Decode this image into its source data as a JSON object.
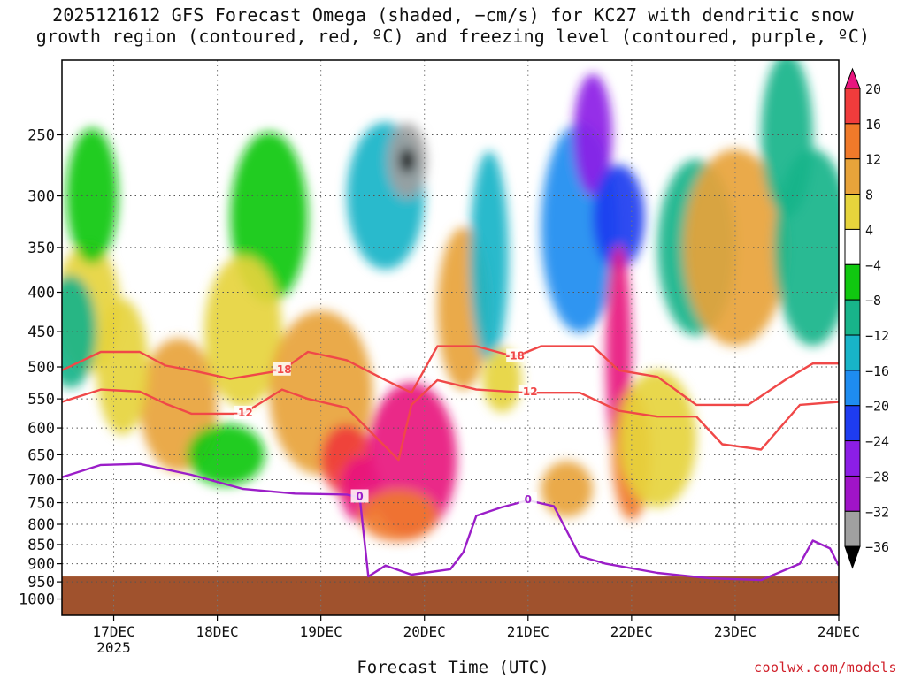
{
  "title_line1": "2025121612 GFS Forecast Omega (shaded, −cm/s) for KC27 with dendritic snow",
  "title_line2": "growth region (contoured, red, ºC) and freezing level (contoured, purple, ºC)",
  "xlabel": "Forecast Time (UTC)",
  "credit": "coolwx.com/models",
  "chart_data": {
    "type": "heatmap",
    "x_axis": {
      "label": "Forecast Time (UTC)",
      "range": [
        "2025-12-16T12:00Z",
        "2025-12-24T00:00Z"
      ],
      "ticks": [
        "17DEC",
        "18DEC",
        "19DEC",
        "20DEC",
        "21DEC",
        "22DEC",
        "23DEC",
        "24DEC"
      ],
      "year_label": "2025"
    },
    "y_axis": {
      "scale": "log-pressure",
      "inverted": true,
      "range_hpa": [
        1050,
        200
      ],
      "ticks": [
        250,
        300,
        350,
        400,
        450,
        500,
        550,
        600,
        650,
        700,
        750,
        800,
        850,
        900,
        950,
        1000
      ]
    },
    "colorbar": {
      "levels": [
        20,
        16,
        12,
        8,
        4,
        -4,
        -8,
        -12,
        -16,
        -20,
        -24,
        -28,
        -32,
        -36
      ],
      "bins": [
        {
          "range": "> 20",
          "color": "#e8157e"
        },
        {
          "range": "16 to 20",
          "color": "#f03c3c"
        },
        {
          "range": "12 to 16",
          "color": "#f07a2a"
        },
        {
          "range": "8 to 12",
          "color": "#e8a33a"
        },
        {
          "range": "4 to 8",
          "color": "#e6d43c"
        },
        {
          "range": "-4 to 4",
          "color": "#ffffff"
        },
        {
          "range": "-8 to -4",
          "color": "#10c810"
        },
        {
          "range": "-12 to -8",
          "color": "#18b48a"
        },
        {
          "range": "-16 to -12",
          "color": "#18b4c8"
        },
        {
          "range": "-20 to -16",
          "color": "#1e8cf0"
        },
        {
          "range": "-24 to -20",
          "color": "#1e3cf0"
        },
        {
          "range": "-28 to -24",
          "color": "#8c1ee6"
        },
        {
          "range": "-32 to -28",
          "color": "#a014c8"
        },
        {
          "range": "-36 to -32",
          "color": "#a0a0a0"
        },
        {
          "range": "< -36",
          "color": "#000000"
        }
      ]
    },
    "blobs": [
      {
        "t": "2025-12-16T18:00Z",
        "p": 420,
        "dt": 2.5,
        "dp": 160,
        "v": 5
      },
      {
        "t": "2025-12-16T19:00Z",
        "p": 300,
        "dt": 2,
        "dp": 120,
        "v": -6
      },
      {
        "t": "2025-12-16T14:00Z",
        "p": 450,
        "dt": 2,
        "dp": 150,
        "v": -10
      },
      {
        "t": "2025-12-17T15:00Z",
        "p": 560,
        "dt": 3,
        "dp": 220,
        "v": 11
      },
      {
        "t": "2025-12-17T02:00Z",
        "p": 500,
        "dt": 2,
        "dp": 200,
        "v": 6
      },
      {
        "t": "2025-12-18T02:00Z",
        "p": 650,
        "dt": 3,
        "dp": 120,
        "v": -7
      },
      {
        "t": "2025-12-18T12:00Z",
        "p": 320,
        "dt": 3,
        "dp": 160,
        "v": -6
      },
      {
        "t": "2025-12-18T06:00Z",
        "p": 450,
        "dt": 3,
        "dp": 200,
        "v": 6
      },
      {
        "t": "2025-12-19T00:00Z",
        "p": 540,
        "dt": 4,
        "dp": 260,
        "v": 10
      },
      {
        "t": "2025-12-19T06:00Z",
        "p": 660,
        "dt": 2,
        "dp": 140,
        "v": 18
      },
      {
        "t": "2025-12-19T09:00Z",
        "p": 720,
        "dt": 1.5,
        "dp": 140,
        "v": 21
      },
      {
        "t": "2025-12-19T15:00Z",
        "p": 300,
        "dt": 3,
        "dp": 130,
        "v": -12
      },
      {
        "t": "2025-12-19T20:00Z",
        "p": 270,
        "dt": 1.5,
        "dp": 60,
        "v": -32
      },
      {
        "t": "2025-12-19T20:00Z",
        "p": 270,
        "dt": 0.6,
        "dp": 20,
        "v": -40
      },
      {
        "t": "2025-12-19T21:00Z",
        "p": 660,
        "dt": 3.5,
        "dp": 300,
        "v": 22
      },
      {
        "t": "2025-12-19T18:00Z",
        "p": 780,
        "dt": 3,
        "dp": 120,
        "v": 14
      },
      {
        "t": "2025-12-20T09:00Z",
        "p": 420,
        "dt": 2,
        "dp": 200,
        "v": 9
      },
      {
        "t": "2025-12-20T15:00Z",
        "p": 360,
        "dt": 1.5,
        "dp": 220,
        "v": -12
      },
      {
        "t": "2025-12-20T18:00Z",
        "p": 520,
        "dt": 1.5,
        "dp": 100,
        "v": 6
      },
      {
        "t": "2025-12-21T12:00Z",
        "p": 330,
        "dt": 3,
        "dp": 200,
        "v": -16
      },
      {
        "t": "2025-12-21T15:00Z",
        "p": 250,
        "dt": 1.5,
        "dp": 90,
        "v": -27
      },
      {
        "t": "2025-12-21T21:00Z",
        "p": 320,
        "dt": 2,
        "dp": 100,
        "v": -20
      },
      {
        "t": "2025-12-21T09:00Z",
        "p": 720,
        "dt": 2,
        "dp": 120,
        "v": 12
      },
      {
        "t": "2025-12-21T21:00Z",
        "p": 480,
        "dt": 1,
        "dp": 300,
        "v": 22
      },
      {
        "t": "2025-12-22T00:00Z",
        "p": 650,
        "dt": 1.5,
        "dp": 250,
        "v": 13
      },
      {
        "t": "2025-12-22T06:00Z",
        "p": 620,
        "dt": 3,
        "dp": 250,
        "v": 5
      },
      {
        "t": "2025-12-22T15:00Z",
        "p": 350,
        "dt": 3,
        "dp": 180,
        "v": -9
      },
      {
        "t": "2025-12-23T00:00Z",
        "p": 350,
        "dt": 4,
        "dp": 200,
        "v": 9
      },
      {
        "t": "2025-12-23T18:00Z",
        "p": 350,
        "dt": 3,
        "dp": 200,
        "v": -10
      },
      {
        "t": "2025-12-23T12:00Z",
        "p": 250,
        "dt": 2,
        "dp": 120,
        "v": -8
      }
    ],
    "contours": [
      {
        "label": "-18",
        "color": "#f04848",
        "points": [
          [
            "2025-12-16T12:00Z",
            505
          ],
          [
            "2025-12-16T21:00Z",
            478
          ],
          [
            "2025-12-17T06:00Z",
            478
          ],
          [
            "2025-12-17T12:00Z",
            498
          ],
          [
            "2025-12-17T18:00Z",
            505
          ],
          [
            "2025-12-18T03:00Z",
            518
          ],
          [
            "2025-12-18T15:00Z",
            505
          ],
          [
            "2025-12-18T21:00Z",
            478
          ],
          [
            "2025-12-19T06:00Z",
            490
          ],
          [
            "2025-12-19T15:00Z",
            520
          ],
          [
            "2025-12-19T21:00Z",
            540
          ],
          [
            "2025-12-20T03:00Z",
            470
          ],
          [
            "2025-12-20T12:00Z",
            470
          ],
          [
            "2025-12-20T21:00Z",
            485
          ],
          [
            "2025-12-21T03:00Z",
            470
          ],
          [
            "2025-12-21T15:00Z",
            470
          ],
          [
            "2025-12-21T21:00Z",
            505
          ],
          [
            "2025-12-22T06:00Z",
            515
          ],
          [
            "2025-12-22T15:00Z",
            560
          ],
          [
            "2025-12-23T03:00Z",
            560
          ],
          [
            "2025-12-23T12:00Z",
            518
          ],
          [
            "2025-12-23T18:00Z",
            495
          ],
          [
            "2025-12-24T00:00Z",
            495
          ]
        ]
      },
      {
        "label": "-12",
        "color": "#f04848",
        "points": [
          [
            "2025-12-16T12:00Z",
            555
          ],
          [
            "2025-12-16T21:00Z",
            535
          ],
          [
            "2025-12-17T06:00Z",
            538
          ],
          [
            "2025-12-17T12:00Z",
            558
          ],
          [
            "2025-12-17T18:00Z",
            575
          ],
          [
            "2025-12-18T06:00Z",
            575
          ],
          [
            "2025-12-18T15:00Z",
            535
          ],
          [
            "2025-12-18T21:00Z",
            550
          ],
          [
            "2025-12-19T06:00Z",
            565
          ],
          [
            "2025-12-19T18:00Z",
            660
          ],
          [
            "2025-12-19T21:00Z",
            560
          ],
          [
            "2025-12-20T03:00Z",
            520
          ],
          [
            "2025-12-20T12:00Z",
            535
          ],
          [
            "2025-12-21T00:00Z",
            540
          ],
          [
            "2025-12-21T12:00Z",
            540
          ],
          [
            "2025-12-21T21:00Z",
            570
          ],
          [
            "2025-12-22T06:00Z",
            580
          ],
          [
            "2025-12-22T15:00Z",
            580
          ],
          [
            "2025-12-22T21:00Z",
            630
          ],
          [
            "2025-12-23T06:00Z",
            640
          ],
          [
            "2025-12-23T15:00Z",
            560
          ],
          [
            "2025-12-24T00:00Z",
            555
          ]
        ]
      },
      {
        "label": "0",
        "color": "#9b1ec8",
        "points": [
          [
            "2025-12-16T12:00Z",
            695
          ],
          [
            "2025-12-16T21:00Z",
            670
          ],
          [
            "2025-12-17T06:00Z",
            668
          ],
          [
            "2025-12-17T18:00Z",
            690
          ],
          [
            "2025-12-18T06:00Z",
            720
          ],
          [
            "2025-12-18T18:00Z",
            730
          ],
          [
            "2025-12-19T06:00Z",
            732
          ],
          [
            "2025-12-19T09:00Z",
            738
          ],
          [
            "2025-12-19T11:00Z",
            935
          ],
          [
            "2025-12-19T15:00Z",
            905
          ],
          [
            "2025-12-19T21:00Z",
            930
          ],
          [
            "2025-12-20T06:00Z",
            915
          ],
          [
            "2025-12-20T09:00Z",
            870
          ],
          [
            "2025-12-20T12:00Z",
            780
          ],
          [
            "2025-12-20T18:00Z",
            760
          ],
          [
            "2025-12-21T00:00Z",
            745
          ],
          [
            "2025-12-21T06:00Z",
            758
          ],
          [
            "2025-12-21T12:00Z",
            880
          ],
          [
            "2025-12-21T18:00Z",
            900
          ],
          [
            "2025-12-22T06:00Z",
            925
          ],
          [
            "2025-12-22T18:00Z",
            940
          ],
          [
            "2025-12-23T06:00Z",
            945
          ],
          [
            "2025-12-23T15:00Z",
            900
          ],
          [
            "2025-12-23T18:00Z",
            840
          ],
          [
            "2025-12-23T22:00Z",
            860
          ],
          [
            "2025-12-24T00:00Z",
            905
          ]
        ]
      }
    ],
    "terrain": {
      "color": "#a0522d",
      "surface_hpa": 935
    }
  }
}
